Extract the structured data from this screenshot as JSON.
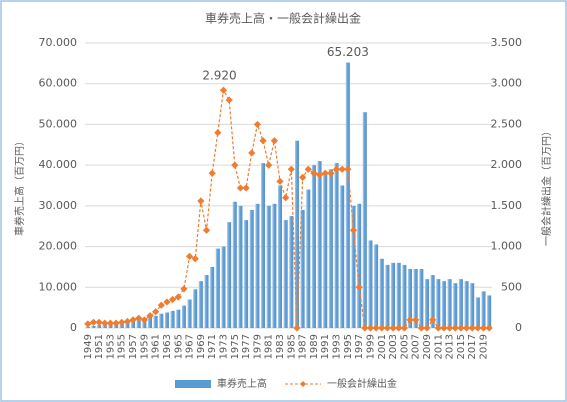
{
  "chart_data": {
    "type": "bar-line",
    "title": "車券売上高・一般会計繰出金",
    "ylabel": "車券売上高（百万円）",
    "y2label": "一般会計繰出金（百万円）",
    "categories": [
      1949,
      null,
      1951,
      null,
      1953,
      null,
      1955,
      null,
      1957,
      null,
      1959,
      null,
      1961,
      null,
      1963,
      null,
      1965,
      null,
      1967,
      null,
      1969,
      null,
      1971,
      null,
      1973,
      null,
      1975,
      null,
      1977,
      null,
      1979,
      null,
      1981,
      null,
      1983,
      null,
      1985,
      null,
      1987,
      null,
      1989,
      null,
      1991,
      null,
      1993,
      null,
      1995,
      null,
      1997,
      null,
      1999,
      null,
      2001,
      null,
      2003,
      null,
      2005,
      null,
      2007,
      null,
      2009,
      null,
      2011,
      null,
      2013,
      null,
      2015,
      null,
      2017,
      null,
      2019,
      null
    ],
    "series": [
      {
        "name": "車券売上高",
        "type": "bar",
        "color": "#5b9bd5",
        "values": [
          300,
          500,
          700,
          800,
          900,
          1000,
          1200,
          1500,
          1800,
          2000,
          2300,
          2600,
          3000,
          3500,
          3800,
          4200,
          4500,
          5500,
          7000,
          9500,
          11500,
          13000,
          15000,
          19500,
          20000,
          26000,
          31000,
          30000,
          26500,
          29000,
          30500,
          40500,
          30000,
          30500,
          35000,
          26500,
          27500,
          46000,
          29000,
          34000,
          40000,
          41000,
          38000,
          39000,
          40500,
          35000,
          65203,
          30000,
          30500,
          53000,
          21500,
          20500,
          17000,
          15500,
          16000,
          16000,
          15500,
          14500,
          14500,
          14500,
          12000,
          13000,
          12000,
          11500,
          12000,
          11000,
          12000,
          11500,
          11000,
          7500,
          9000,
          8000
        ],
        "value_labels": [
          null,
          null,
          null,
          null,
          null,
          null,
          null,
          null,
          null,
          null,
          null,
          null,
          null,
          null,
          null,
          null,
          null,
          null,
          null,
          null,
          null,
          null,
          null,
          null,
          null,
          null,
          null,
          null,
          null,
          null,
          null,
          null,
          null,
          null,
          null,
          null,
          null,
          null,
          null,
          null,
          null,
          null,
          null,
          null,
          null,
          null,
          "65.203",
          null,
          null,
          null,
          null,
          null,
          null,
          null,
          null,
          null,
          null,
          null,
          null,
          null,
          null,
          null,
          null,
          null,
          null,
          null,
          null,
          null,
          null,
          null,
          null,
          null
        ]
      },
      {
        "name": "一般会計繰出金",
        "type": "line",
        "axis": "y2",
        "color": "#ed7d31",
        "values": [
          50,
          70,
          70,
          60,
          60,
          60,
          70,
          80,
          100,
          120,
          100,
          150,
          200,
          280,
          320,
          350,
          380,
          480,
          880,
          850,
          1560,
          1200,
          1900,
          2400,
          2920,
          2800,
          2000,
          1720,
          1720,
          2150,
          2500,
          2300,
          2000,
          2300,
          1800,
          1600,
          1950,
          0,
          1850,
          1950,
          1900,
          1880,
          1900,
          1900,
          1950,
          1950,
          1950,
          1200,
          500,
          0,
          0,
          0,
          0,
          0,
          0,
          0,
          0,
          100,
          100,
          0,
          0,
          100,
          0,
          0,
          0,
          0,
          0,
          0,
          0,
          0,
          0,
          0
        ],
        "value_labels": [
          null,
          null,
          null,
          null,
          null,
          null,
          null,
          null,
          null,
          null,
          null,
          null,
          null,
          null,
          null,
          null,
          null,
          null,
          null,
          null,
          null,
          null,
          null,
          null,
          "2.920",
          null,
          null,
          null,
          null,
          null,
          null,
          null,
          null,
          null,
          null,
          null,
          null,
          null,
          null,
          null,
          null,
          null,
          null,
          null,
          null,
          null,
          null,
          null,
          null,
          null,
          null,
          null,
          null,
          null,
          null,
          null,
          null,
          null,
          null,
          null,
          null,
          null,
          null,
          null,
          null,
          null,
          null,
          null,
          null,
          null,
          null,
          null
        ]
      }
    ],
    "ylim": [
      0,
      70000
    ],
    "yticks": [
      0,
      {
        "value": 10000,
        "label": "10.000"
      },
      {
        "value": 20000,
        "label": "20.000"
      },
      {
        "value": 30000,
        "label": "30.000"
      },
      {
        "value": 40000,
        "label": "40.000"
      },
      {
        "value": 50000,
        "label": "50.000"
      },
      {
        "value": 60000,
        "label": "60.000"
      },
      {
        "value": 70000,
        "label": "70.000"
      }
    ],
    "y2lim": [
      0,
      3500
    ],
    "y2ticks": [
      0,
      500,
      {
        "value": 1000,
        "label": "1.000"
      },
      {
        "value": 1500,
        "label": "1.500"
      },
      {
        "value": 2000,
        "label": "2.000"
      },
      {
        "value": 2500,
        "label": "2.500"
      },
      {
        "value": 3000,
        "label": "3.000"
      },
      {
        "value": 3500,
        "label": "3.500"
      }
    ],
    "legend": "bottom"
  }
}
